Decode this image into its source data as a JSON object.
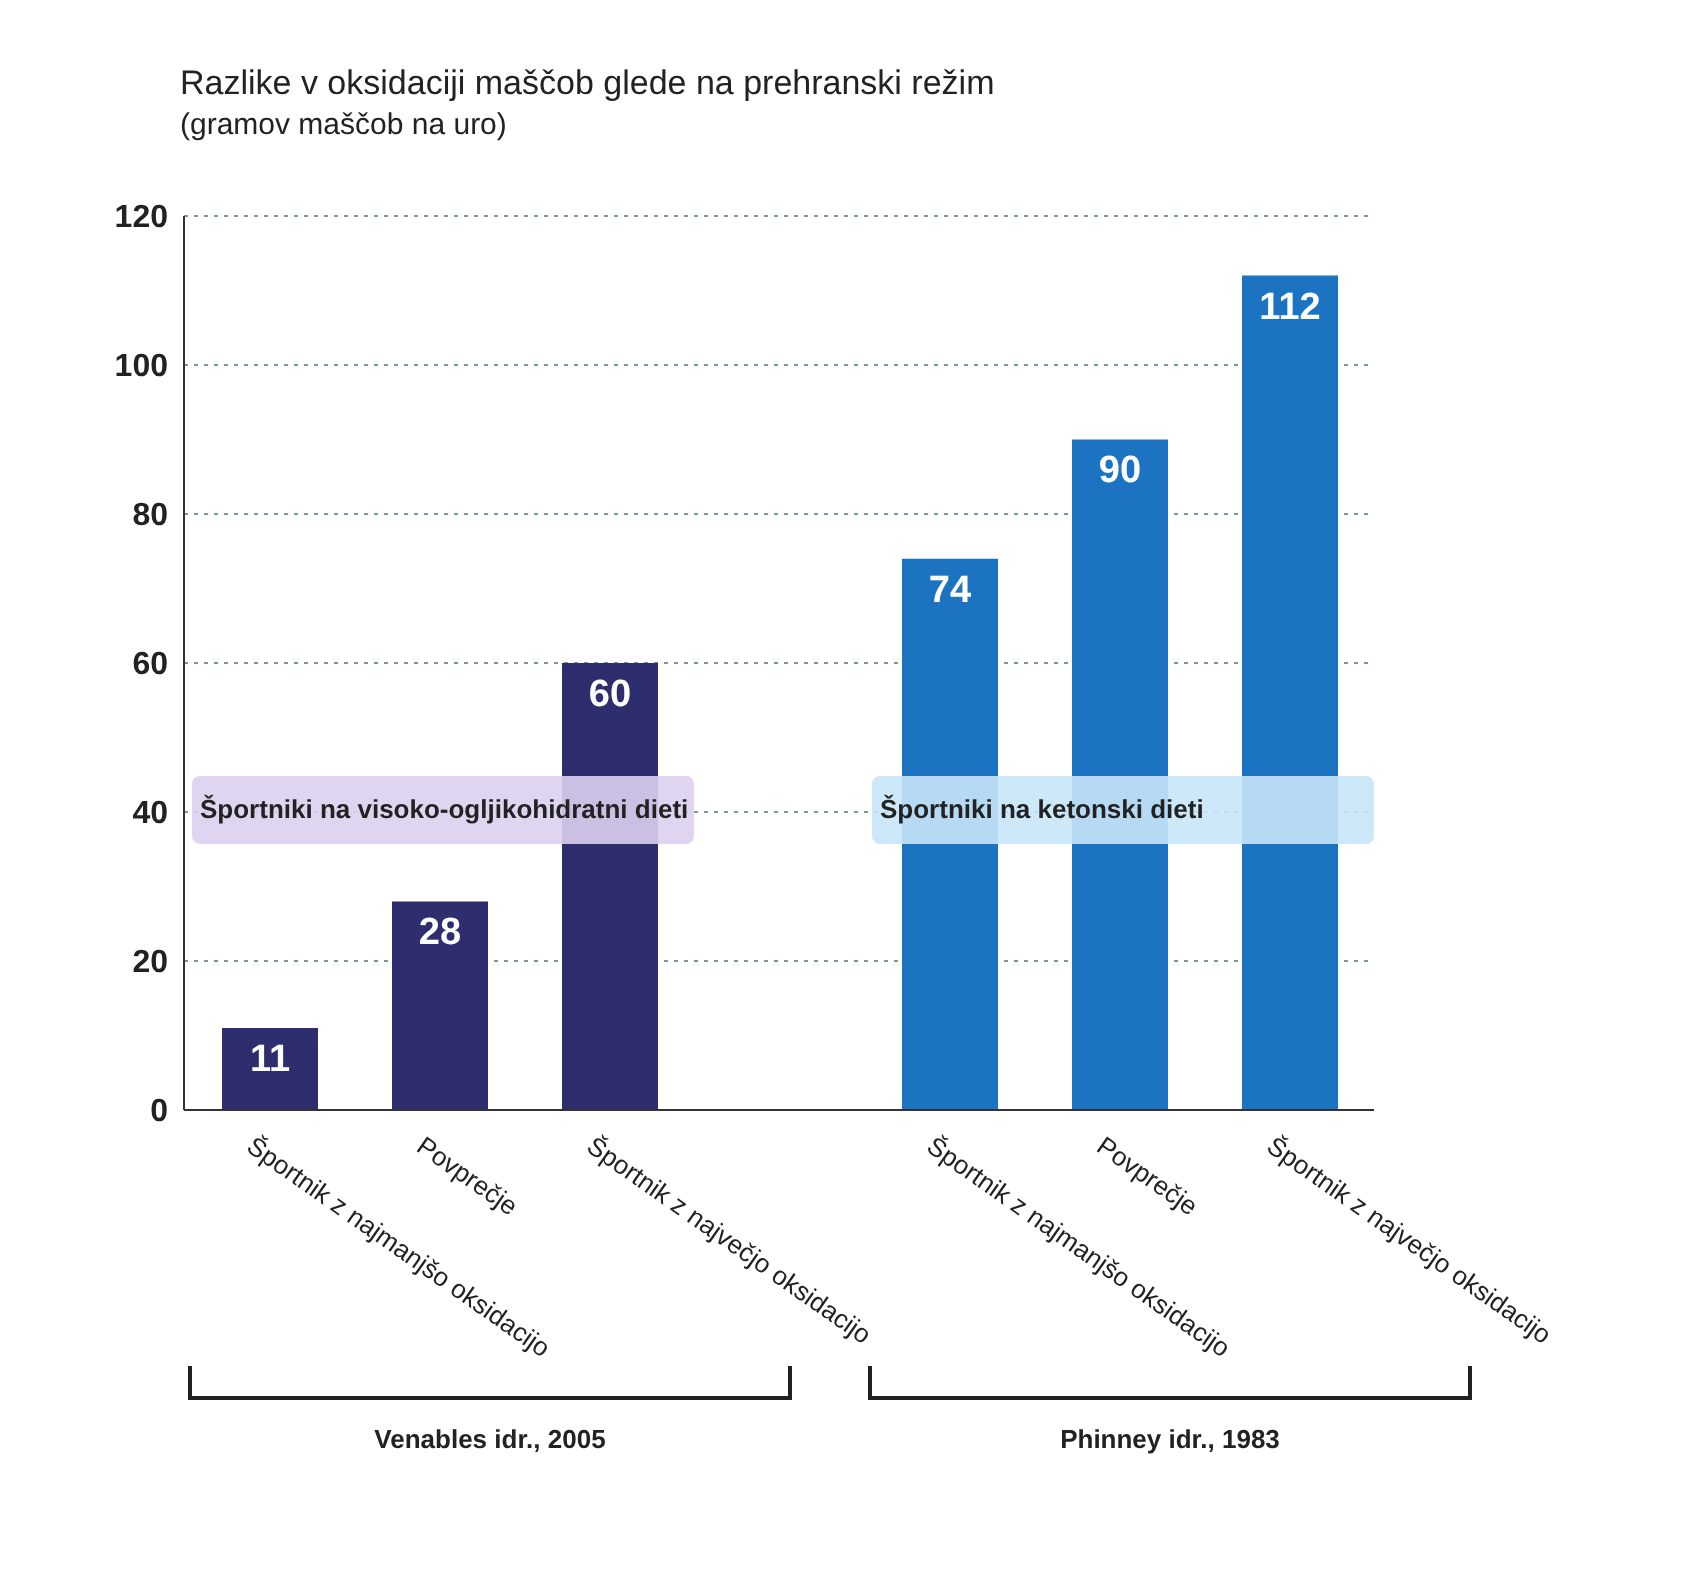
{
  "chart_data": {
    "type": "bar",
    "title": "Razlike v oksidaciji maščob glede na prehranski režim",
    "subtitle": "(gramov maščob na uro)",
    "categories": [
      "Športnik z najmanjšo oksidacijo",
      "Povprečje",
      "Športnik z največjo oksidacijo",
      null,
      "Športnik z najmanjšo oksidacijo",
      "Povprečje",
      "Športnik z največjo oksidacijo"
    ],
    "values": [
      11,
      28,
      60,
      null,
      74,
      90,
      112
    ],
    "colors": [
      "#2e2d6e",
      "#2e2d6e",
      "#2e2d6e",
      "#2e2d6e",
      "#1b73c2",
      "#1b73c2",
      "#1b73c2"
    ],
    "ylim": [
      0,
      120
    ],
    "yticks": [
      0,
      20,
      40,
      60,
      80,
      100,
      120
    ],
    "grid": "y",
    "data_labels": true,
    "annotations": [
      "Športniki na visoko-ogljikohidratni dieti",
      "Športniki na ketonski dieti",
      "Venables idr., 2005",
      "Phinney idr., 1983"
    ]
  }
}
